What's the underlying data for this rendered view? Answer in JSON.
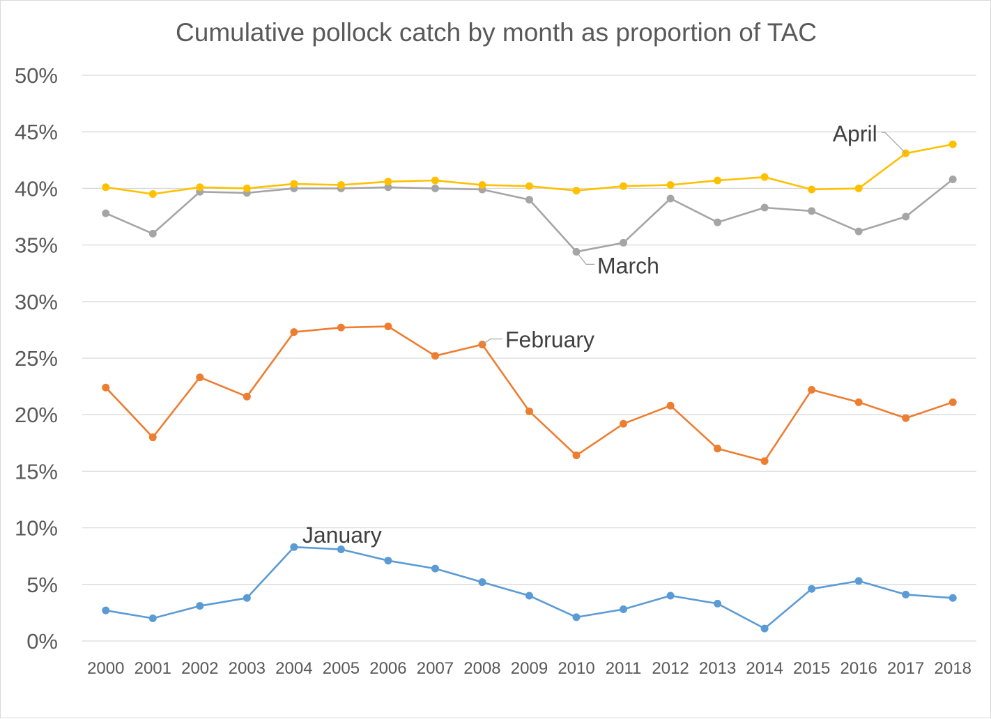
{
  "chart_data": {
    "type": "line",
    "title": "Cumulative pollock catch by month as proportion of TAC",
    "xlabel": "",
    "ylabel": "",
    "x": [
      "2000",
      "2001",
      "2002",
      "2003",
      "2004",
      "2005",
      "2006",
      "2007",
      "2008",
      "2009",
      "2010",
      "2011",
      "2012",
      "2013",
      "2014",
      "2015",
      "2016",
      "2017",
      "2018"
    ],
    "y_ticks": [
      "0%",
      "5%",
      "10%",
      "15%",
      "20%",
      "25%",
      "30%",
      "35%",
      "40%",
      "45%",
      "50%"
    ],
    "ylim": [
      0,
      0.5
    ],
    "grid": true,
    "legend": "none (series labeled directly on the plot)",
    "series": [
      {
        "name": "January",
        "color": "#5b9bd5",
        "values": [
          0.027,
          0.02,
          0.031,
          0.038,
          0.083,
          0.081,
          0.071,
          0.064,
          0.052,
          0.04,
          0.021,
          0.028,
          0.04,
          0.033,
          0.011,
          0.046,
          0.053,
          0.041,
          0.038
        ]
      },
      {
        "name": "February",
        "color": "#ed7d31",
        "values": [
          0.224,
          0.18,
          0.233,
          0.216,
          0.273,
          0.277,
          0.278,
          0.252,
          0.262,
          0.203,
          0.164,
          0.192,
          0.208,
          0.17,
          0.159,
          0.222,
          0.211,
          0.197,
          0.211
        ]
      },
      {
        "name": "March",
        "color": "#a5a5a5",
        "values": [
          0.378,
          0.36,
          0.397,
          0.396,
          0.4,
          0.4,
          0.401,
          0.4,
          0.399,
          0.39,
          0.344,
          0.352,
          0.391,
          0.37,
          0.383,
          0.38,
          0.362,
          0.375,
          0.408
        ]
      },
      {
        "name": "April",
        "color": "#ffc000",
        "values": [
          0.401,
          0.395,
          0.401,
          0.4,
          0.404,
          0.403,
          0.406,
          0.407,
          0.403,
          0.402,
          0.398,
          0.402,
          0.403,
          0.407,
          0.41,
          0.399,
          0.4,
          0.431,
          0.439
        ]
      }
    ]
  }
}
